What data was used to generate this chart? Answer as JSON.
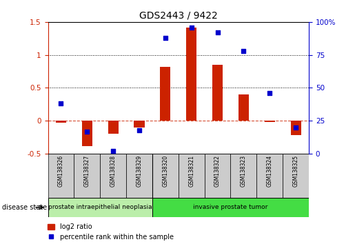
{
  "title": "GDS2443 / 9422",
  "samples": [
    "GSM138326",
    "GSM138327",
    "GSM138328",
    "GSM138329",
    "GSM138320",
    "GSM138321",
    "GSM138322",
    "GSM138323",
    "GSM138324",
    "GSM138325"
  ],
  "log2_ratio": [
    -0.03,
    -0.38,
    -0.2,
    -0.1,
    0.82,
    1.42,
    0.85,
    0.4,
    -0.02,
    -0.22
  ],
  "percentile_rank": [
    38,
    17,
    2,
    18,
    88,
    96,
    92,
    78,
    46,
    20
  ],
  "ylim_left": [
    -0.5,
    1.5
  ],
  "ylim_right": [
    0,
    100
  ],
  "disease_groups": [
    {
      "label": "prostate intraepithelial neoplasia",
      "start": 0,
      "end": 4,
      "color": "#bbeeaa"
    },
    {
      "label": "invasive prostate tumor",
      "start": 4,
      "end": 10,
      "color": "#44dd44"
    }
  ],
  "bar_color": "#cc2200",
  "dot_color": "#0000cc",
  "dotted_line_color": "#000000",
  "zero_line_color": "#cc2200",
  "axis_left_color": "#cc2200",
  "axis_right_color": "#0000cc",
  "legend_bar_label": "log2 ratio",
  "legend_dot_label": "percentile rank within the sample",
  "bar_width": 0.4,
  "sample_box_color": "#cccccc",
  "disease_state_label": "disease state"
}
